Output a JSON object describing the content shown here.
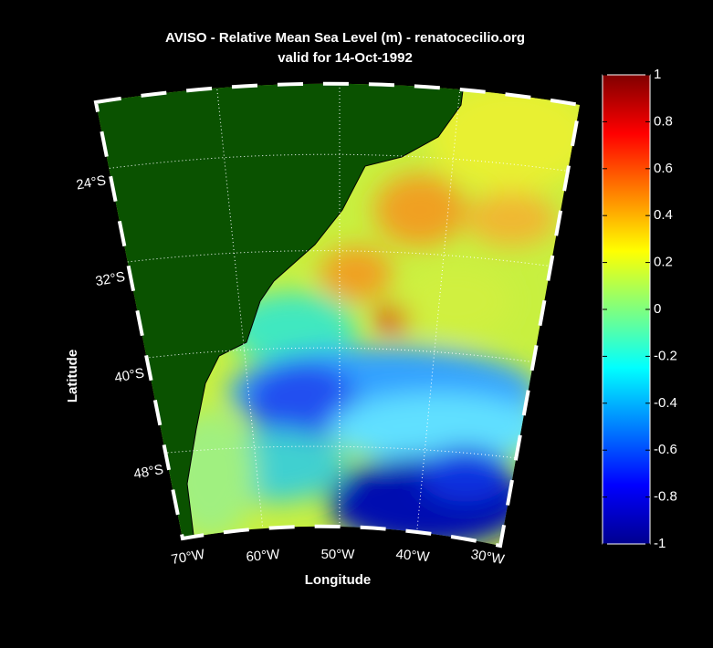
{
  "chart_data": {
    "type": "map",
    "title": "AVISO - Relative Mean Sea Level (m) - renatocecilio.org",
    "subtitle": "valid for 14-Oct-1992",
    "xlabel": "Longitude",
    "ylabel": "Latitude",
    "lat_ticks": [
      {
        "value": -24,
        "label": "24°S"
      },
      {
        "value": -32,
        "label": "32°S"
      },
      {
        "value": -40,
        "label": "40°S"
      },
      {
        "value": -48,
        "label": "48°S"
      }
    ],
    "lon_ticks": [
      {
        "value": -70,
        "label": "70°W"
      },
      {
        "value": -60,
        "label": "60°W"
      },
      {
        "value": -50,
        "label": "50°W"
      },
      {
        "value": -40,
        "label": "40°W"
      },
      {
        "value": -30,
        "label": "30°W"
      }
    ],
    "clim": [
      -1,
      1
    ],
    "cticks": [
      -1,
      -0.8,
      -0.6,
      -0.4,
      -0.2,
      0,
      0.2,
      0.4,
      0.6,
      0.8,
      1
    ],
    "colormap": "jet"
  }
}
